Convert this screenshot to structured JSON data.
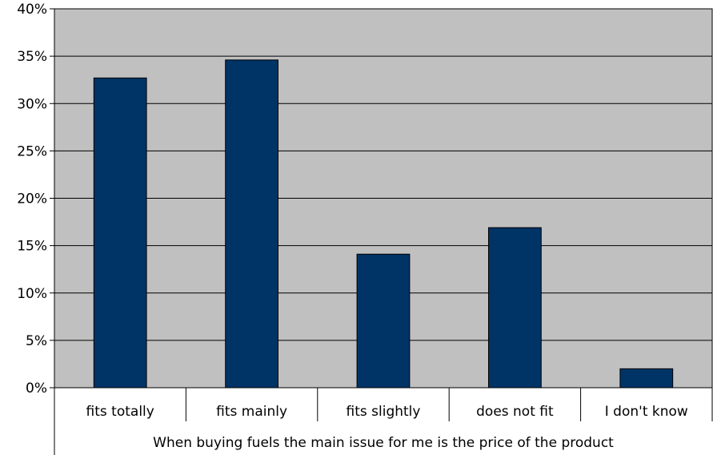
{
  "chart_data": {
    "type": "bar",
    "categories": [
      "fits totally",
      "fits mainly",
      "fits slightly",
      "does not fit",
      "I don't know"
    ],
    "values": [
      32.7,
      34.6,
      14.1,
      16.9,
      2.0
    ],
    "group_label": "When buying fuels the main issue for me is the price of the product",
    "title": "",
    "xlabel": "",
    "ylabel": "",
    "ylim": [
      0,
      40
    ],
    "yticks": [
      0,
      5,
      10,
      15,
      20,
      25,
      30,
      35,
      40
    ],
    "ytick_labels": [
      "0%",
      "5%",
      "10%",
      "15%",
      "20%",
      "25%",
      "30%",
      "35%",
      "40%"
    ],
    "grid": true,
    "legend": "none",
    "colors": {
      "plot_background": "#c0c0c0",
      "bar_fill": "#003366",
      "gridline": "#000000"
    }
  }
}
